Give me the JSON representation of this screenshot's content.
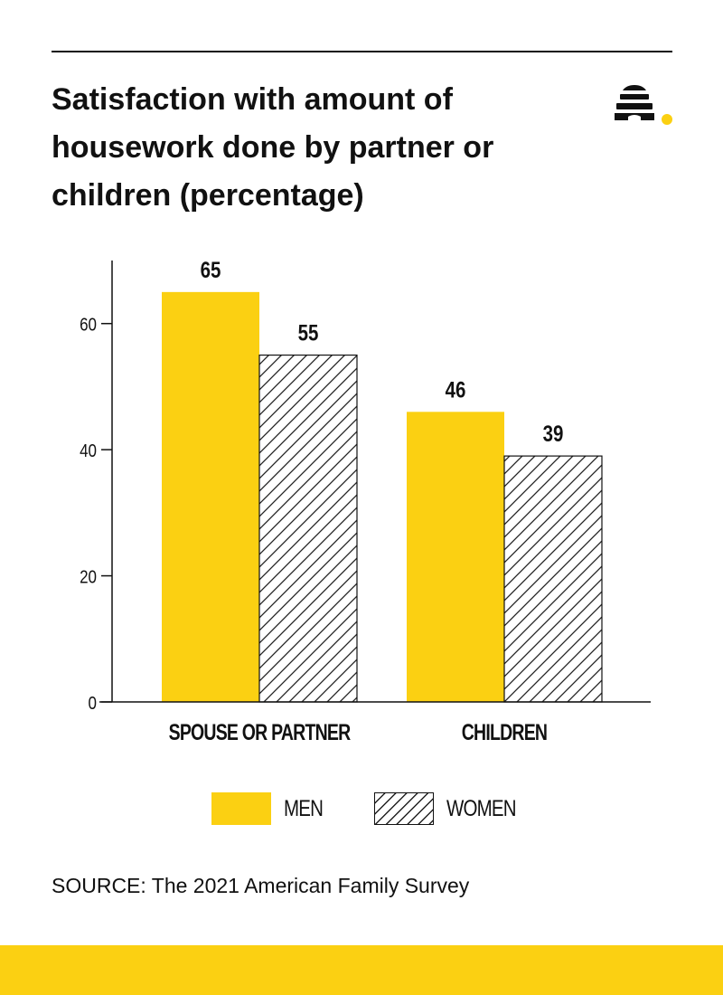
{
  "colors": {
    "men": "#FBD012",
    "women_fill": "#ffffff",
    "hatch": "#222222",
    "text": "#111111",
    "accent": "#FBD012"
  },
  "logo_icon": "beehive-icon",
  "title": "Satisfaction with amount of housework done by partner or children (percentage)",
  "source": "SOURCE: The 2021 American Family Survey",
  "chart_data": {
    "type": "bar",
    "title": "Satisfaction with amount of housework done by partner or children (percentage)",
    "categories": [
      "SPOUSE OR PARTNER",
      "CHILDREN"
    ],
    "series": [
      {
        "name": "MEN",
        "values": [
          65,
          46
        ]
      },
      {
        "name": "WOMEN",
        "values": [
          55,
          39
        ]
      }
    ],
    "xlabel": "",
    "ylabel": "",
    "ylim": [
      0,
      70
    ],
    "yticks": [
      0,
      20,
      40,
      60
    ],
    "data_labels": true,
    "grid": false,
    "legend": "bottom-center"
  }
}
